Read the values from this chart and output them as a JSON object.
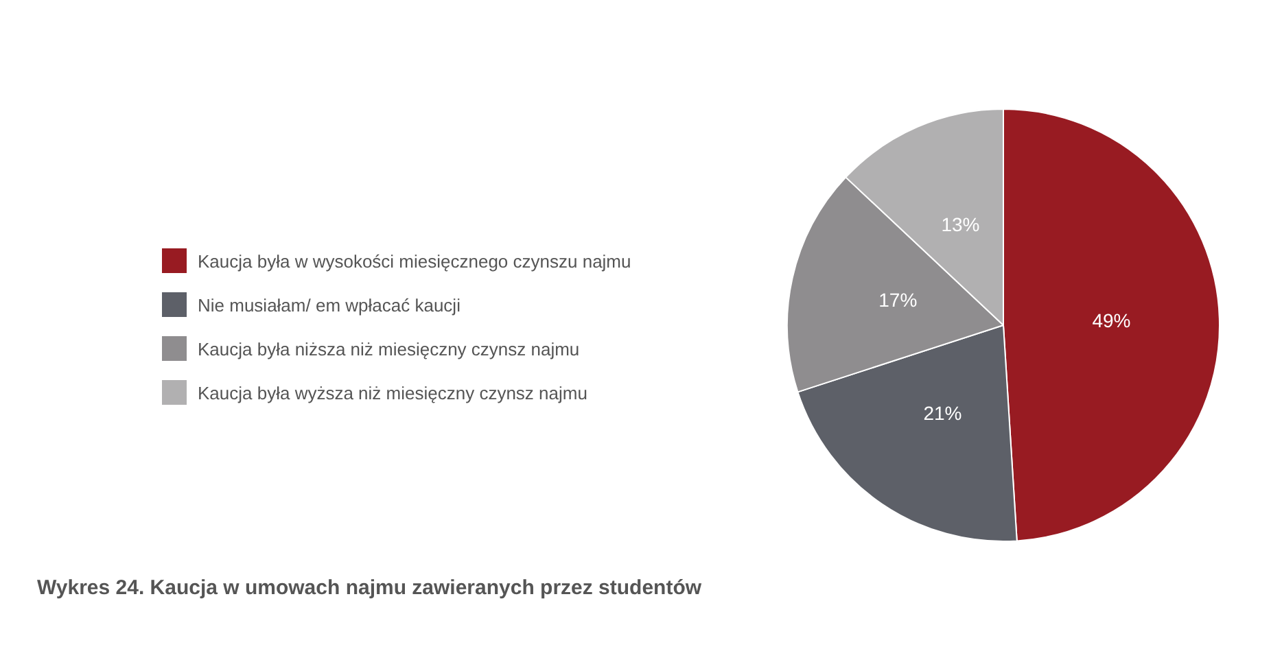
{
  "chart_data": {
    "type": "pie",
    "title": "Wykres 24. Kaucja w umowach najmu zawieranych przez studentów",
    "categories": [
      "Kaucja była w wysokości miesięcznego czynszu najmu",
      "Nie musiałam/ em wpłacać kaucji",
      "Kaucja była niższa niż miesięczny czynsz najmu",
      "Kaucja była wyższa niż miesięczny czynsz najmu"
    ],
    "values": [
      49,
      21,
      17,
      13
    ],
    "colors": [
      "#981b22",
      "#5d6068",
      "#8f8d8f",
      "#b1b0b1"
    ],
    "value_labels": [
      "49%",
      "21%",
      "17%",
      "13%"
    ],
    "legend": "left"
  }
}
